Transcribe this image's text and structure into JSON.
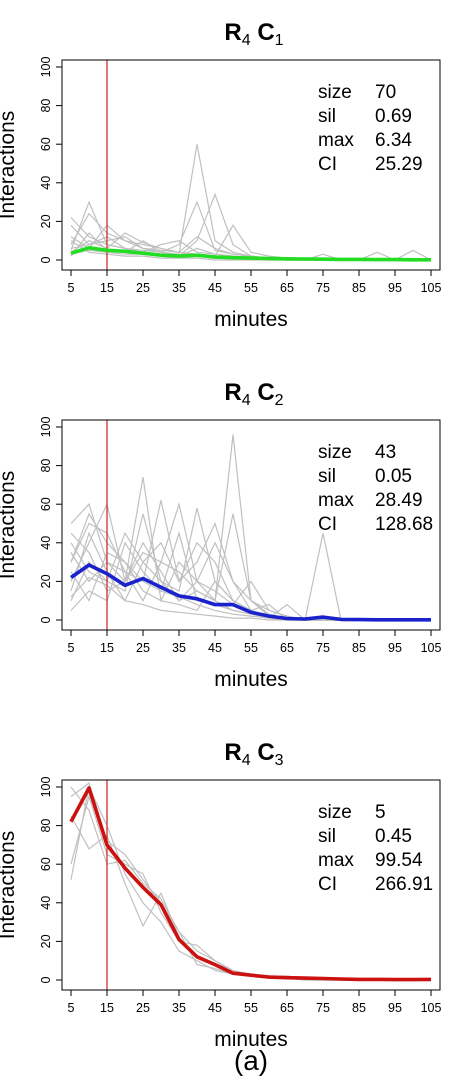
{
  "caption": "(a)",
  "colors": {
    "gray_lines": "#c0c0c0",
    "vline": "#d03030",
    "axis": "#000000"
  },
  "chart_data": [
    {
      "type": "line",
      "title_main": "R",
      "title_sub1": "4",
      "title_mid": " C",
      "title_sub2": "1",
      "xlabel": "minutes",
      "ylabel": "Interactions",
      "ylim": [
        0,
        100
      ],
      "yticks": [
        0,
        20,
        40,
        60,
        80,
        100
      ],
      "xticks": [
        5,
        15,
        25,
        35,
        45,
        55,
        65,
        75,
        85,
        95,
        105
      ],
      "vline_x": 15,
      "mean_color": "#22dd22",
      "stats": [
        {
          "label": "size",
          "value": "70"
        },
        {
          "label": "sil",
          "value": "0.69"
        },
        {
          "label": "max",
          "value": "6.34"
        },
        {
          "label": "CI",
          "value": "25.29"
        }
      ],
      "x": [
        5,
        10,
        15,
        20,
        25,
        30,
        35,
        40,
        45,
        50,
        55,
        60,
        65,
        70,
        75,
        80,
        85,
        90,
        95,
        100,
        105
      ],
      "mean": [
        3.5,
        6.3,
        5,
        4.5,
        3.5,
        2.5,
        2,
        2.5,
        1.5,
        1.2,
        1,
        0.8,
        0.6,
        0.5,
        0.4,
        0.3,
        0.3,
        0.2,
        0.2,
        0.1,
        0.1
      ],
      "gray_series": [
        [
          8,
          24,
          14,
          10,
          6,
          4,
          3,
          60,
          10,
          4,
          2,
          1,
          0,
          0,
          0,
          0,
          0,
          0,
          0,
          0,
          0
        ],
        [
          22,
          12,
          8,
          6,
          5,
          4,
          8,
          30,
          5,
          3,
          2,
          1,
          1,
          0,
          0,
          0,
          0,
          0,
          0,
          0,
          0
        ],
        [
          5,
          30,
          8,
          6,
          4,
          3,
          2,
          10,
          34,
          8,
          2,
          1,
          0,
          0,
          0,
          0,
          0,
          0,
          0,
          0,
          0
        ],
        [
          12,
          6,
          18,
          10,
          8,
          6,
          4,
          3,
          2,
          18,
          4,
          2,
          1,
          0,
          0,
          0,
          0,
          0,
          0,
          0,
          0
        ],
        [
          4,
          10,
          6,
          14,
          9,
          6,
          4,
          3,
          2,
          1,
          1,
          1,
          0,
          0,
          0,
          0,
          0,
          0,
          0,
          0,
          0
        ],
        [
          18,
          8,
          12,
          6,
          4,
          8,
          10,
          4,
          3,
          2,
          1,
          1,
          0,
          0,
          0,
          0,
          0,
          0,
          0,
          0,
          0
        ],
        [
          2,
          14,
          5,
          4,
          10,
          4,
          2,
          2,
          1,
          1,
          1,
          0,
          0,
          0,
          0,
          0,
          0,
          0,
          0,
          0,
          0
        ],
        [
          10,
          4,
          3,
          2,
          2,
          1,
          1,
          1,
          0,
          0,
          0,
          0,
          0,
          0,
          3,
          0,
          0,
          4,
          0,
          0,
          0
        ],
        [
          6,
          8,
          10,
          12,
          6,
          5,
          4,
          12,
          6,
          3,
          2,
          1,
          1,
          1,
          0,
          0,
          0,
          0,
          0,
          5,
          0
        ],
        [
          3,
          5,
          4,
          3,
          3,
          2,
          2,
          6,
          3,
          2,
          1,
          1,
          0,
          0,
          0,
          0,
          0,
          0,
          0,
          0,
          0
        ]
      ]
    },
    {
      "type": "line",
      "title_main": "R",
      "title_sub1": "4",
      "title_mid": " C",
      "title_sub2": "2",
      "xlabel": "minutes",
      "ylabel": "Interactions",
      "ylim": [
        0,
        100
      ],
      "yticks": [
        0,
        20,
        40,
        60,
        80,
        100
      ],
      "xticks": [
        5,
        15,
        25,
        35,
        45,
        55,
        65,
        75,
        85,
        95,
        105
      ],
      "vline_x": 15,
      "mean_color": "#1a22cc",
      "stats": [
        {
          "label": "size",
          "value": "43"
        },
        {
          "label": "sil",
          "value": "0.05"
        },
        {
          "label": "max",
          "value": "28.49"
        },
        {
          "label": "CI",
          "value": "128.68"
        }
      ],
      "x": [
        5,
        10,
        15,
        20,
        25,
        30,
        35,
        40,
        45,
        50,
        55,
        60,
        65,
        70,
        75,
        80,
        85,
        90,
        95,
        100,
        105
      ],
      "mean": [
        22,
        28.5,
        24,
        18,
        21.5,
        17,
        12.5,
        11,
        8,
        8,
        4,
        2,
        0.8,
        0.5,
        1.5,
        0.3,
        0.2,
        0.1,
        0.1,
        0.1,
        0.1
      ],
      "gray_series": [
        [
          50,
          60,
          30,
          20,
          74,
          10,
          30,
          20,
          10,
          96,
          10,
          2,
          0,
          0,
          0,
          0,
          0,
          0,
          0,
          0,
          0
        ],
        [
          30,
          55,
          40,
          30,
          20,
          62,
          20,
          40,
          30,
          10,
          5,
          2,
          1,
          0,
          0,
          0,
          0,
          0,
          0,
          0,
          0
        ],
        [
          20,
          40,
          60,
          20,
          35,
          30,
          60,
          20,
          40,
          20,
          10,
          5,
          2,
          0,
          45,
          0,
          0,
          0,
          0,
          0,
          0
        ],
        [
          40,
          25,
          20,
          45,
          30,
          20,
          15,
          58,
          20,
          10,
          5,
          2,
          1,
          0,
          0,
          0,
          0,
          0,
          0,
          0,
          0
        ],
        [
          10,
          30,
          20,
          15,
          55,
          20,
          10,
          15,
          10,
          55,
          10,
          3,
          1,
          0,
          0,
          0,
          0,
          0,
          0,
          0,
          0
        ],
        [
          35,
          20,
          30,
          25,
          20,
          15,
          45,
          10,
          8,
          5,
          3,
          2,
          1,
          0,
          0,
          0,
          0,
          0,
          0,
          0,
          0
        ],
        [
          15,
          45,
          25,
          10,
          30,
          40,
          20,
          30,
          50,
          20,
          5,
          1,
          0,
          0,
          0,
          0,
          0,
          0,
          0,
          0,
          0
        ],
        [
          25,
          10,
          35,
          30,
          15,
          10,
          8,
          5,
          20,
          10,
          5,
          8,
          0,
          0,
          0,
          0,
          0,
          0,
          0,
          0,
          0
        ],
        [
          5,
          15,
          10,
          40,
          25,
          15,
          12,
          8,
          5,
          3,
          2,
          1,
          8,
          0,
          0,
          0,
          0,
          0,
          0,
          0,
          0
        ],
        [
          45,
          35,
          15,
          20,
          40,
          25,
          10,
          20,
          15,
          8,
          20,
          5,
          2,
          0,
          0,
          0,
          0,
          0,
          0,
          0,
          0
        ],
        [
          30,
          50,
          45,
          25,
          10,
          30,
          25,
          15,
          10,
          5,
          3,
          1,
          0,
          0,
          0,
          0,
          0,
          0,
          0,
          0,
          0
        ],
        [
          12,
          22,
          18,
          10,
          8,
          5,
          4,
          3,
          2,
          1,
          1,
          0,
          0,
          0,
          0,
          0,
          0,
          0,
          0,
          0,
          0
        ]
      ]
    },
    {
      "type": "line",
      "title_main": "R",
      "title_sub1": "4",
      "title_mid": " C",
      "title_sub2": "3",
      "xlabel": "minutes",
      "ylabel": "Interactions",
      "ylim": [
        0,
        100
      ],
      "yticks": [
        0,
        20,
        40,
        60,
        80,
        100
      ],
      "xticks": [
        5,
        15,
        25,
        35,
        45,
        55,
        65,
        75,
        85,
        95,
        105
      ],
      "vline_x": 15,
      "mean_color": "#cc1111",
      "stats": [
        {
          "label": "size",
          "value": "5"
        },
        {
          "label": "sil",
          "value": "0.45"
        },
        {
          "label": "max",
          "value": "99.54"
        },
        {
          "label": "CI",
          "value": "266.91"
        }
      ],
      "x": [
        5,
        10,
        15,
        20,
        25,
        30,
        35,
        40,
        45,
        50,
        55,
        60,
        65,
        70,
        75,
        80,
        85,
        90,
        95,
        100,
        105
      ],
      "mean": [
        82,
        99.5,
        70,
        58,
        48,
        39,
        21,
        12,
        8,
        3.5,
        2.5,
        1.5,
        1.2,
        1,
        0.8,
        0.5,
        0.3,
        0.3,
        0.2,
        0.2,
        0.3
      ],
      "gray_series": [
        [
          52,
          100,
          80,
          55,
          40,
          30,
          15,
          10,
          5,
          3,
          2,
          1,
          1,
          0,
          0,
          0,
          0,
          0,
          0,
          0,
          0
        ],
        [
          100,
          88,
          60,
          62,
          50,
          42,
          25,
          15,
          10,
          5,
          3,
          2,
          1,
          1,
          0,
          0,
          0,
          0,
          0,
          0,
          0
        ],
        [
          85,
          68,
          75,
          50,
          28,
          45,
          22,
          12,
          8,
          3,
          2,
          1,
          1,
          0,
          0,
          0,
          0,
          0,
          0,
          0,
          0
        ],
        [
          60,
          95,
          65,
          60,
          55,
          35,
          20,
          18,
          10,
          4,
          2,
          2,
          1,
          1,
          1,
          0,
          0,
          0,
          0,
          0,
          0
        ],
        [
          95,
          102,
          72,
          65,
          52,
          40,
          25,
          8,
          6,
          3,
          3,
          2,
          2,
          1,
          1,
          0,
          0,
          0,
          0,
          0,
          0
        ]
      ]
    }
  ]
}
